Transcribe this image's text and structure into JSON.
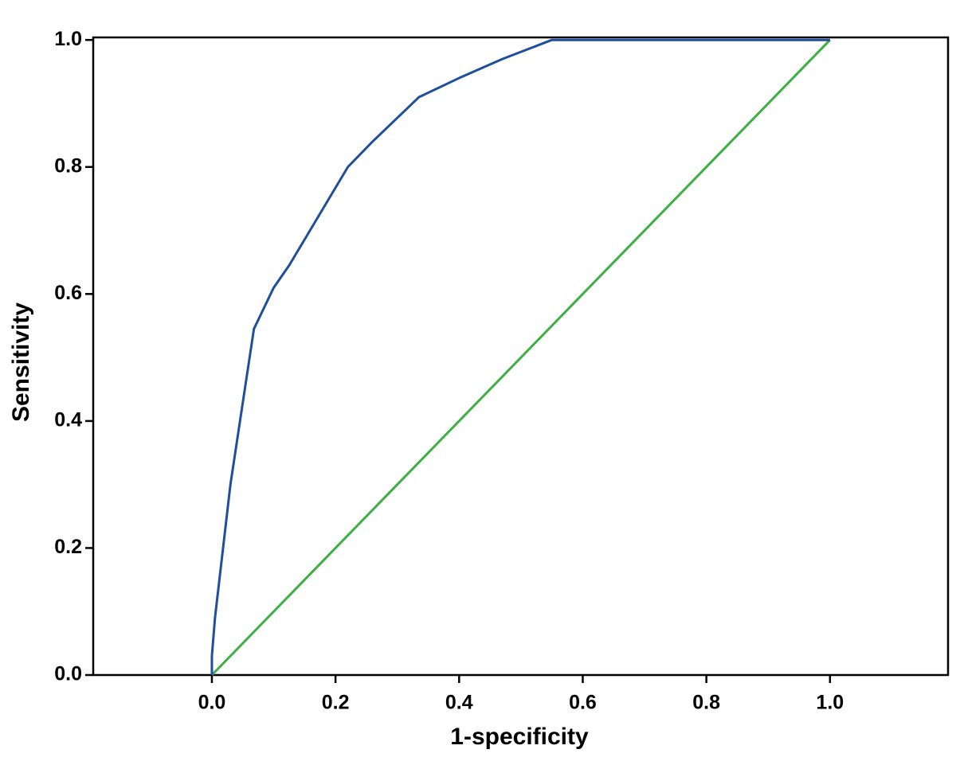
{
  "chart_data": {
    "type": "line",
    "x_label": "1-specificity",
    "y_label": "Sensitivity",
    "series": [
      {
        "color": "#1f4e9c",
        "x": [
          0,
          0,
          0.005,
          0.03,
          0.068,
          0.1,
          0.125,
          0.22,
          0.26,
          0.335,
          0.4,
          0.47,
          0.55,
          1.0
        ],
        "values": [
          0,
          0.03,
          0.09,
          0.3,
          0.545,
          0.61,
          0.645,
          0.8,
          0.84,
          0.91,
          0.94,
          0.97,
          1.0,
          1.0
        ]
      },
      {
        "color": "#3cb043",
        "x": [
          0,
          1.0
        ],
        "values": [
          0,
          1.0
        ]
      }
    ],
    "xlim": [
      -0.192,
      1.191
    ],
    "ylim": [
      0,
      1.004
    ],
    "xticks": [
      {
        "value": 0,
        "label": "0.0"
      },
      0.2,
      0.4,
      0.6,
      0.8,
      {
        "value": 1,
        "label": "1.0"
      }
    ],
    "yticks": [
      {
        "value": 0,
        "label": "0.0"
      },
      0.2,
      0.4,
      0.6,
      0.8,
      {
        "value": 1,
        "label": "1.0"
      }
    ],
    "grid": false
  }
}
